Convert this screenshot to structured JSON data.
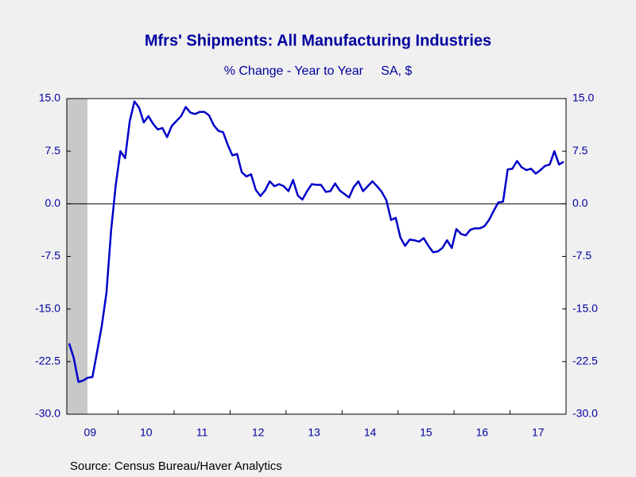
{
  "chart_data": {
    "type": "line",
    "title": "Mfrs' Shipments: All Manufacturing Industries",
    "subtitle": "% Change - Year to Year     SA, $",
    "source": "Source:  Census Bureau/Haver Analytics",
    "categories": [
      null,
      null,
      null,
      null,
      null,
      "09",
      null,
      null,
      null,
      null,
      null,
      null,
      null,
      null,
      null,
      null,
      null,
      "10",
      null,
      null,
      null,
      null,
      null,
      null,
      null,
      null,
      null,
      null,
      null,
      "11",
      null,
      null,
      null,
      null,
      null,
      null,
      null,
      null,
      null,
      null,
      null,
      "12",
      null,
      null,
      null,
      null,
      null,
      null,
      null,
      null,
      null,
      null,
      null,
      "13",
      null,
      null,
      null,
      null,
      null,
      null,
      null,
      null,
      null,
      null,
      null,
      "14",
      null,
      null,
      null,
      null,
      null,
      null,
      null,
      null,
      null,
      null,
      null,
      "15",
      null,
      null,
      null,
      null,
      null,
      null,
      null,
      null,
      null,
      null,
      null,
      "16",
      null,
      null,
      null,
      null,
      null,
      null,
      null,
      null,
      null,
      null,
      null,
      "17",
      null,
      null,
      null,
      null,
      null
    ],
    "series": [
      {
        "color": "#0000c8",
        "values": [
          -19.9,
          -22.0,
          -25.4,
          -25.2,
          -24.8,
          -24.7,
          -21.1,
          -17.4,
          -12.7,
          -3.8,
          2.7,
          7.5,
          6.5,
          11.8,
          14.6,
          13.7,
          11.6,
          12.5,
          11.4,
          10.6,
          10.8,
          9.5,
          11.1,
          11.8,
          12.5,
          13.8,
          13.0,
          12.8,
          13.1,
          13.1,
          12.6,
          11.2,
          10.4,
          10.2,
          8.4,
          6.9,
          7.1,
          4.5,
          3.9,
          4.2,
          2.0,
          1.1,
          1.9,
          3.2,
          2.5,
          2.8,
          2.5,
          1.8,
          3.4,
          1.2,
          0.6,
          1.8,
          2.8,
          2.7,
          2.7,
          1.7,
          1.8,
          2.9,
          1.9,
          1.4,
          0.9,
          2.4,
          3.2,
          1.8,
          2.5,
          3.2,
          2.5,
          1.7,
          0.5,
          -2.3,
          -2.0,
          -4.8,
          -6.0,
          -5.1,
          -5.2,
          -5.4,
          -4.9,
          -6.0,
          -6.9,
          -6.8,
          -6.3,
          -5.2,
          -6.3,
          -3.6,
          -4.3,
          -4.5,
          -3.7,
          -3.5,
          -3.5,
          -3.2,
          -2.3,
          -1.0,
          0.2,
          0.3,
          4.9,
          5.0,
          6.1,
          5.2,
          4.8,
          5.0,
          4.3,
          4.8,
          5.4,
          5.6,
          7.5,
          5.6,
          6.0
        ]
      }
    ],
    "ylim": [
      -30,
      15
    ],
    "yticks": [
      {
        "value": 15,
        "label": "15.0"
      },
      7.5,
      {
        "value": 0,
        "label": "0.0"
      },
      -7.5,
      {
        "value": -15,
        "label": "-15.0"
      },
      -22.5,
      {
        "value": -30,
        "label": "-30.0"
      }
    ]
  }
}
